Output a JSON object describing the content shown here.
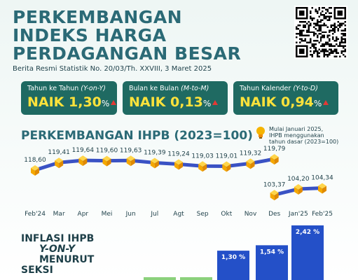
{
  "header": {
    "title_lines": [
      "PERKEMBANGAN",
      "INDEKS HARGA",
      "PERDAGANGAN BESAR"
    ],
    "subtitle": "Berita Resmi Statistik  No. 20/03/Th. XXVIII, 3 Maret 2025"
  },
  "cards": [
    {
      "label_main": "Tahun ke Tahun ",
      "label_paren": "(Y-on-Y)",
      "prefix": "NAIK ",
      "value": "1,30",
      "unit": "%",
      "trend": "up"
    },
    {
      "label_main": "Bulan ke Bulan ",
      "label_paren": "(M-to-M)",
      "prefix": "NAIK ",
      "value": "0,13",
      "unit": "%",
      "trend": "up"
    },
    {
      "label_main": "Tahun Kalender ",
      "label_paren": "(Y-to-D)",
      "prefix": "NAIK ",
      "value": "0,94",
      "unit": "%",
      "trend": "up"
    }
  ],
  "section": {
    "title": "PERKEMBANGAN IHPB (2023=100)",
    "note_lines": [
      "Mulai Januari 2025,",
      "IHPB menggunakan",
      "tahun dasar (2023=100)"
    ]
  },
  "chart_data": [
    {
      "type": "line",
      "title": "PERKEMBANGAN IHPB (2023=100)",
      "categories": [
        "Feb'24",
        "Mar",
        "Apr",
        "Mei",
        "Jun",
        "Jul",
        "Agt",
        "Sep",
        "Okt",
        "Nov",
        "Des",
        "Jan'25",
        "Feb'25"
      ],
      "series": [
        {
          "values": [
            118.6,
            119.41,
            119.64,
            119.6,
            119.63,
            119.39,
            119.24,
            119.03,
            119.01,
            119.32,
            119.79,
            null,
            null
          ],
          "labels": [
            "118,60",
            "119,41",
            "119,64",
            "119,60",
            "119,63",
            "119,39",
            "119,24",
            "119,03",
            "119,01",
            "119,32",
            "119,79",
            "",
            ""
          ]
        },
        {
          "values": [
            null,
            null,
            null,
            null,
            null,
            null,
            null,
            null,
            null,
            null,
            103.37,
            104.2,
            104.34
          ],
          "labels": [
            "",
            "",
            "",
            "",
            "",
            "",
            "",
            "",
            "",
            "",
            "103,37",
            "104,20",
            "104,34"
          ]
        }
      ],
      "colors": {
        "line": "#3a52c4",
        "marker": "#f5b400"
      }
    },
    {
      "type": "bar",
      "title_lines": [
        "INFLASI IHPB",
        "Y-ON-Y",
        "MENURUT",
        "SEKSI"
      ],
      "values": [
        1.3,
        1.54,
        2.42
      ],
      "labels": [
        "1,30 %",
        "1,54 %",
        "2,42 %"
      ],
      "colors": {
        "bar": "#2450c8",
        "bar_light": "#3a6be0"
      }
    }
  ]
}
